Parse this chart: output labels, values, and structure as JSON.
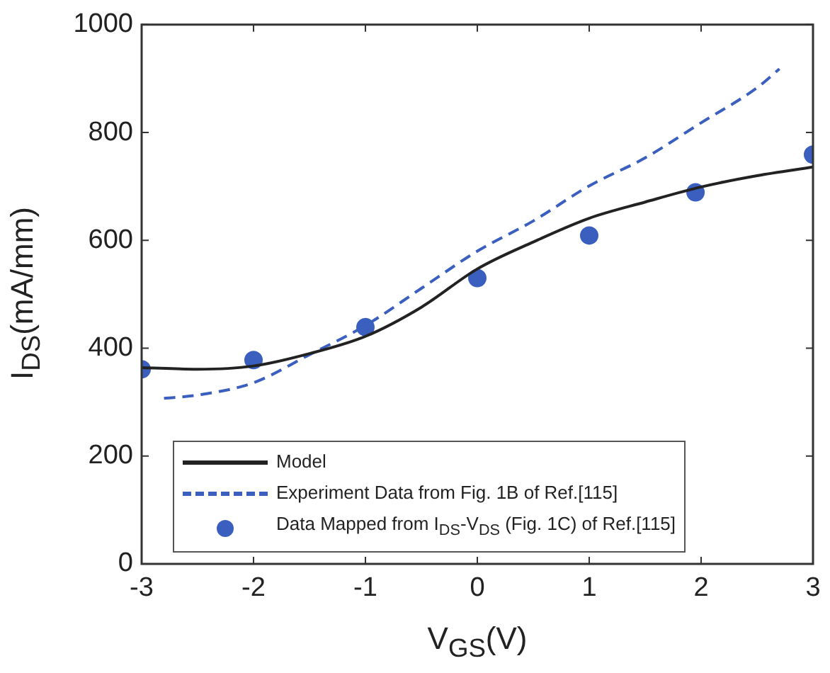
{
  "chart_data": {
    "type": "line",
    "xlabel": "V$_{GS}$(V)",
    "ylabel": "I$_{DS}$(mA/mm)",
    "xlim": [
      -3,
      3
    ],
    "xticks": [
      -3,
      -2,
      -1,
      0,
      1,
      2,
      3
    ],
    "ylim": [
      0,
      1000
    ],
    "yticks": [
      0,
      200,
      400,
      600,
      800,
      1000
    ],
    "grid": false,
    "legend": "bottom",
    "series": [
      {
        "name": "Model",
        "color": "#222222",
        "line_style": "solid",
        "marker": "none",
        "x": [
          -3,
          -2.5,
          -2,
          -1.5,
          -1,
          -0.5,
          0,
          0.5,
          1,
          1.5,
          2,
          2.5,
          3
        ],
        "values": [
          364,
          361,
          367,
          390,
          422,
          476,
          547,
          597,
          641,
          671,
          699,
          720,
          736
        ]
      },
      {
        "name": "Experiment Data from Fig. 1B of Ref.[115]",
        "color": "#3a5fbf",
        "line_style": "dashed",
        "marker": "none",
        "x": [
          -2.8,
          -2.5,
          -2,
          -1.5,
          -1,
          -0.5,
          0,
          0.5,
          1,
          1.5,
          2,
          2.5,
          2.7
        ],
        "values": [
          307,
          313,
          336,
          388,
          442,
          511,
          580,
          636,
          701,
          753,
          818,
          883,
          918
        ]
      },
      {
        "name": "Data Mapped from I$_{DS}$-V$_{DS}$ (Fig. 1C) of Ref.[115]",
        "type": "scatter",
        "color": "#3a5fbf",
        "marker": "circle",
        "x": [
          -3,
          -2,
          -1,
          0,
          1,
          1.95,
          3
        ],
        "values": [
          361,
          378,
          439,
          530,
          609,
          689,
          759
        ]
      }
    ]
  }
}
